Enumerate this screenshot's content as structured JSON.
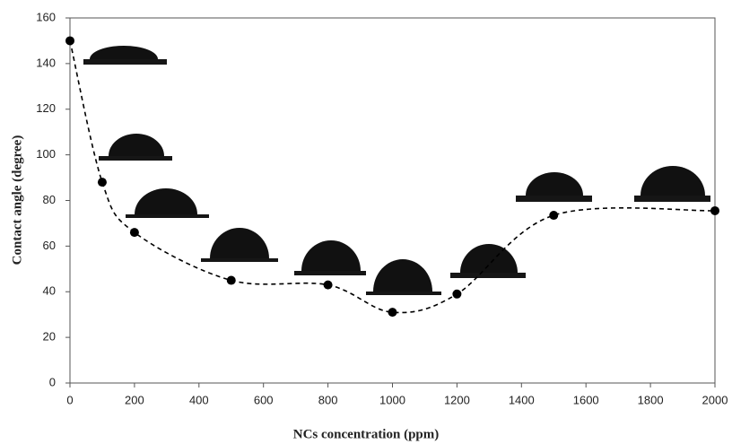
{
  "chart_data": {
    "type": "scatter",
    "x_label": "NCs concentration (ppm)",
    "y_label": "Contact angle (degree)",
    "x": [
      0,
      100,
      200,
      500,
      800,
      1000,
      1200,
      1500,
      2000
    ],
    "values": [
      150,
      88,
      66,
      45,
      43,
      31,
      39,
      73.5,
      75.5
    ],
    "color": "#000000",
    "line": "dashed",
    "xlim": [
      0,
      2000
    ],
    "xticks": [
      0,
      200,
      400,
      600,
      800,
      1000,
      1200,
      1400,
      1600,
      1800,
      2000
    ],
    "ylim": [
      0,
      160
    ],
    "yticks": [
      0,
      20,
      40,
      60,
      80,
      100,
      120,
      140,
      160
    ],
    "grid": false
  }
}
